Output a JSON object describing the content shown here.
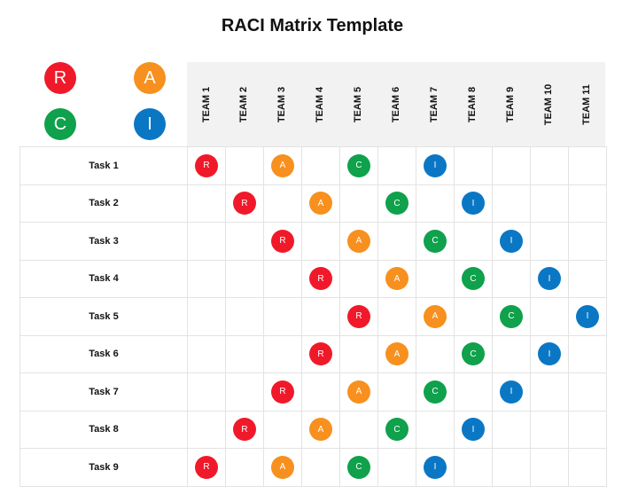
{
  "title": "RACI Matrix Template",
  "colors": {
    "R": "#f0192a",
    "A": "#f7901e",
    "C": "#0fa14b",
    "I": "#0a77c5"
  },
  "legend": [
    {
      "letter": "R"
    },
    {
      "letter": "A"
    },
    {
      "letter": "C"
    },
    {
      "letter": "I"
    }
  ],
  "teams": [
    "TEAM 1",
    "TEAM 2",
    "TEAM 3",
    "TEAM 4",
    "TEAM 5",
    "TEAM 6",
    "TEAM 7",
    "TEAM 8",
    "TEAM 9",
    "TEAM 10",
    "TEAM 11"
  ],
  "tasks": [
    {
      "name": "Task 1",
      "cells": [
        "R",
        "",
        "A",
        "",
        "C",
        "",
        "I",
        "",
        "",
        "",
        ""
      ]
    },
    {
      "name": "Task 2",
      "cells": [
        "",
        "R",
        "",
        "A",
        "",
        "C",
        "",
        "I",
        "",
        "",
        ""
      ]
    },
    {
      "name": "Task 3",
      "cells": [
        "",
        "",
        "R",
        "",
        "A",
        "",
        "C",
        "",
        "I",
        "",
        ""
      ]
    },
    {
      "name": "Task 4",
      "cells": [
        "",
        "",
        "",
        "R",
        "",
        "A",
        "",
        "C",
        "",
        "I",
        ""
      ]
    },
    {
      "name": "Task 5",
      "cells": [
        "",
        "",
        "",
        "",
        "R",
        "",
        "A",
        "",
        "C",
        "",
        "I"
      ]
    },
    {
      "name": "Task 6",
      "cells": [
        "",
        "",
        "",
        "R",
        "",
        "A",
        "",
        "C",
        "",
        "I",
        ""
      ]
    },
    {
      "name": "Task 7",
      "cells": [
        "",
        "",
        "R",
        "",
        "A",
        "",
        "C",
        "",
        "I",
        "",
        ""
      ]
    },
    {
      "name": "Task 8",
      "cells": [
        "",
        "R",
        "",
        "A",
        "",
        "C",
        "",
        "I",
        "",
        "",
        ""
      ]
    },
    {
      "name": "Task 9",
      "cells": [
        "R",
        "",
        "A",
        "",
        "C",
        "",
        "I",
        "",
        "",
        "",
        ""
      ]
    }
  ]
}
